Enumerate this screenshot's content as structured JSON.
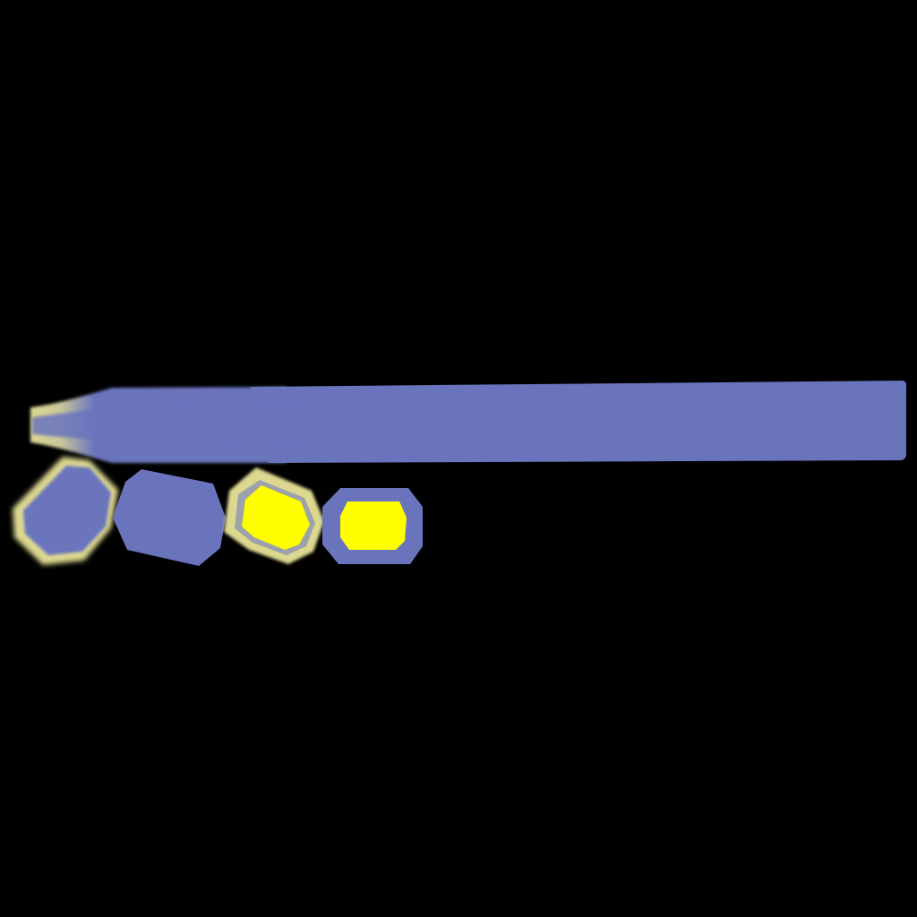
{
  "colors": {
    "background": "#000000",
    "periwinkle": "#6a74bd",
    "pale_yellow": "#dcd890",
    "bright_yellow": "#ffff00"
  },
  "shapes": {
    "bar": {
      "name": "periwinkle-bar-with-tapered-tip"
    },
    "octagons": [
      {
        "name": "octagon-1",
        "fill": "periwinkle",
        "glow": "pale_yellow"
      },
      {
        "name": "octagon-2",
        "fill": "periwinkle",
        "glow": "none"
      },
      {
        "name": "octagon-3",
        "fill": "bright_yellow",
        "rim": "pale_yellow"
      },
      {
        "name": "octagon-4",
        "fill": "bright_yellow",
        "rim": "periwinkle"
      }
    ]
  }
}
